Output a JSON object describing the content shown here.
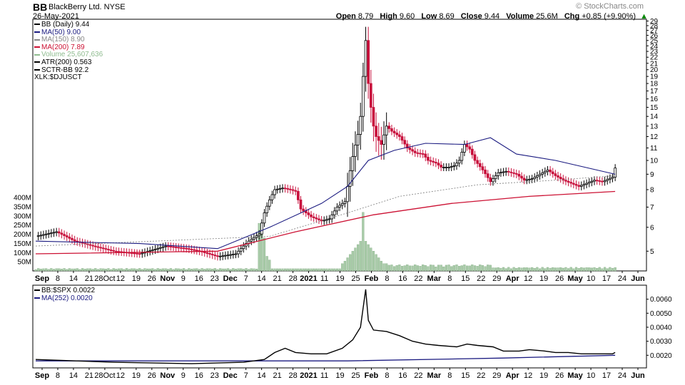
{
  "header": {
    "symbol": "BB",
    "name": "BlackBerry Ltd.",
    "exchange": "NYSE",
    "date": "26-May-2021",
    "brand": "© StockCharts.com",
    "open_label": "Open",
    "open": "8.79",
    "high_label": "High",
    "high": "9.60",
    "low_label": "Low",
    "low": "8.69",
    "close_label": "Close",
    "close": "9.44",
    "volume_label": "Volume",
    "volume": "25.6M",
    "chg_label": "Chg",
    "chg": "+0.85 (+9.90%)",
    "chg_arrow": "▲"
  },
  "legend": [
    {
      "text": "BB (Daily) 9.44",
      "color": "#000000"
    },
    {
      "text": "MA(50) 9.00",
      "color": "#1a1a80"
    },
    {
      "text": "MA(150) 8.90",
      "color": "#888888"
    },
    {
      "text": "MA(200) 7.89",
      "color": "#cc1133"
    },
    {
      "text": "Volume 25,607,636",
      "color": "#8fbc8f"
    },
    {
      "text": "ATR(200) 0.563",
      "color": "#000000"
    },
    {
      "text": "SCTR-BB 92.2",
      "color": "#000000"
    },
    {
      "text": "XLK:$DJUSCT",
      "color": ""
    }
  ],
  "lower_legend": [
    {
      "text": "BB:$SPX 0.0022",
      "color": "#000000"
    },
    {
      "text": "MA(252) 0.0020",
      "color": "#1a1a80"
    }
  ],
  "colors": {
    "up": "#000000",
    "down": "#c8103c",
    "ma50": "#1a1a80",
    "ma150": "#888888",
    "ma200": "#cc1133",
    "volume": "#a8cba8",
    "ratio": "#000000",
    "ratio_ma": "#1a1a80"
  },
  "chart_data": [
    {
      "type": "candlestick",
      "title": "BB (Daily) 9.44",
      "y_scale": "log",
      "ylim": [
        4.3,
        29.4
      ],
      "y_ticks": [
        5,
        6,
        7,
        8,
        9,
        10,
        11,
        12,
        13,
        14,
        15,
        16,
        17,
        18,
        19,
        20,
        21,
        22,
        23,
        24,
        25,
        26,
        27,
        28,
        29
      ],
      "volume_ticks": [
        "50M",
        "100M",
        "150M",
        "200M",
        "250M",
        "300M",
        "350M",
        "400M"
      ],
      "volume_values": [
        50,
        100,
        150,
        200,
        250,
        300,
        350,
        400
      ],
      "x_labels": [
        "Sep",
        "8",
        "14",
        "21",
        "28Oct",
        "12",
        "19",
        "26",
        "Nov",
        "9",
        "16",
        "23",
        "Dec",
        "7",
        "14",
        "21",
        "28",
        "2021",
        "11",
        "19",
        "25",
        "Feb",
        "8",
        "16",
        "22",
        "Mar",
        "8",
        "15",
        "22",
        "29",
        "Apr",
        "12",
        "19",
        "26",
        "May",
        "10",
        "17",
        "24",
        "Jun"
      ],
      "x_label_bold": [
        "Sep",
        "Oct",
        "Nov",
        "Dec",
        "2021",
        "Feb",
        "Mar",
        "Apr",
        "May",
        "Jun"
      ],
      "price_path": [
        [
          0,
          5.6
        ],
        [
          8,
          5.8
        ],
        [
          15,
          5.4
        ],
        [
          22,
          5.2
        ],
        [
          30,
          5.0
        ],
        [
          40,
          4.9
        ],
        [
          50,
          5.2
        ],
        [
          58,
          5.1
        ],
        [
          63,
          5.0
        ],
        [
          70,
          4.8
        ],
        [
          77,
          4.9
        ],
        [
          82,
          5.4
        ],
        [
          86,
          5.7
        ],
        [
          88,
          6.7
        ],
        [
          90,
          7.4
        ],
        [
          92,
          8.0
        ],
        [
          95,
          8.1
        ],
        [
          98,
          8.0
        ],
        [
          100,
          7.9
        ],
        [
          102,
          6.9
        ],
        [
          106,
          6.5
        ],
        [
          110,
          6.3
        ],
        [
          113,
          6.4
        ],
        [
          116,
          7.0
        ],
        [
          119,
          7.3
        ],
        [
          120,
          8.2
        ],
        [
          122,
          10.3
        ],
        [
          124,
          12.2
        ],
        [
          125,
          14.0
        ],
        [
          126,
          19.0
        ],
        [
          127,
          25.0
        ],
        [
          128,
          18.0
        ],
        [
          129,
          15.0
        ],
        [
          130,
          13.0
        ],
        [
          131,
          12.0
        ],
        [
          133,
          11.3
        ],
        [
          135,
          13.0
        ],
        [
          137,
          12.5
        ],
        [
          140,
          12.0
        ],
        [
          143,
          11.0
        ],
        [
          146,
          10.6
        ],
        [
          149,
          10.5
        ],
        [
          151,
          10.0
        ],
        [
          154,
          9.8
        ],
        [
          156,
          9.5
        ],
        [
          159,
          9.5
        ],
        [
          161,
          9.6
        ],
        [
          163,
          10.0
        ],
        [
          165,
          11.3
        ],
        [
          167,
          10.9
        ],
        [
          169,
          10.0
        ],
        [
          172,
          9.3
        ],
        [
          175,
          8.5
        ],
        [
          178,
          9.1
        ],
        [
          181,
          9.2
        ],
        [
          185,
          9.0
        ],
        [
          188,
          8.6
        ],
        [
          191,
          8.7
        ],
        [
          194,
          9.0
        ],
        [
          197,
          9.3
        ],
        [
          200,
          8.9
        ],
        [
          203,
          8.6
        ],
        [
          206,
          8.4
        ],
        [
          209,
          8.2
        ],
        [
          212,
          8.4
        ],
        [
          215,
          8.6
        ],
        [
          218,
          8.5
        ],
        [
          222,
          8.8
        ],
        [
          223,
          9.44
        ]
      ],
      "ma50_path": [
        [
          0,
          5.4
        ],
        [
          40,
          5.3
        ],
        [
          70,
          5.1
        ],
        [
          90,
          6.0
        ],
        [
          110,
          7.2
        ],
        [
          120,
          8.2
        ],
        [
          128,
          10.0
        ],
        [
          138,
          10.8
        ],
        [
          150,
          11.4
        ],
        [
          165,
          11.3
        ],
        [
          175,
          11.9
        ],
        [
          185,
          10.5
        ],
        [
          200,
          10.0
        ],
        [
          223,
          9.0
        ]
      ],
      "ma150_path": [
        [
          0,
          5.2
        ],
        [
          90,
          5.6
        ],
        [
          120,
          6.7
        ],
        [
          140,
          7.6
        ],
        [
          170,
          8.3
        ],
        [
          200,
          8.6
        ],
        [
          223,
          8.9
        ]
      ],
      "ma200_path": [
        [
          0,
          4.9
        ],
        [
          70,
          5.0
        ],
        [
          100,
          5.8
        ],
        [
          130,
          6.6
        ],
        [
          160,
          7.2
        ],
        [
          190,
          7.6
        ],
        [
          223,
          7.89
        ]
      ]
    },
    {
      "type": "line",
      "title": "BB:$SPX 0.0022",
      "ylim": [
        0.0011,
        0.007
      ],
      "y_ticks": [
        0.002,
        0.003,
        0.004,
        0.005,
        0.006
      ],
      "y_tick_labels": [
        "0.0020",
        "0.0030",
        "0.0040",
        "0.0050",
        "0.0060"
      ],
      "series": [
        {
          "name": "BB:$SPX",
          "values": [
            [
              0,
              0.0017
            ],
            [
              30,
              0.0015
            ],
            [
              60,
              0.0014
            ],
            [
              80,
              0.0015
            ],
            [
              88,
              0.0017
            ],
            [
              92,
              0.0022
            ],
            [
              96,
              0.0025
            ],
            [
              100,
              0.0022
            ],
            [
              106,
              0.0021
            ],
            [
              112,
              0.0021
            ],
            [
              118,
              0.0025
            ],
            [
              122,
              0.0031
            ],
            [
              125,
              0.004
            ],
            [
              127,
              0.0067
            ],
            [
              128,
              0.0045
            ],
            [
              130,
              0.0038
            ],
            [
              135,
              0.0037
            ],
            [
              140,
              0.0034
            ],
            [
              145,
              0.003
            ],
            [
              150,
              0.0028
            ],
            [
              155,
              0.0027
            ],
            [
              162,
              0.0026
            ],
            [
              166,
              0.0028
            ],
            [
              170,
              0.0027
            ],
            [
              176,
              0.0026
            ],
            [
              180,
              0.0023
            ],
            [
              186,
              0.0023
            ],
            [
              190,
              0.0024
            ],
            [
              196,
              0.0023
            ],
            [
              200,
              0.0022
            ],
            [
              205,
              0.0022
            ],
            [
              210,
              0.0021
            ],
            [
              215,
              0.0021
            ],
            [
              222,
              0.0021
            ],
            [
              223,
              0.0022
            ]
          ]
        },
        {
          "name": "MA(252)",
          "values": [
            [
              0,
              0.0016
            ],
            [
              120,
              0.0016
            ],
            [
              180,
              0.0018
            ],
            [
              223,
              0.002
            ]
          ]
        }
      ]
    }
  ]
}
